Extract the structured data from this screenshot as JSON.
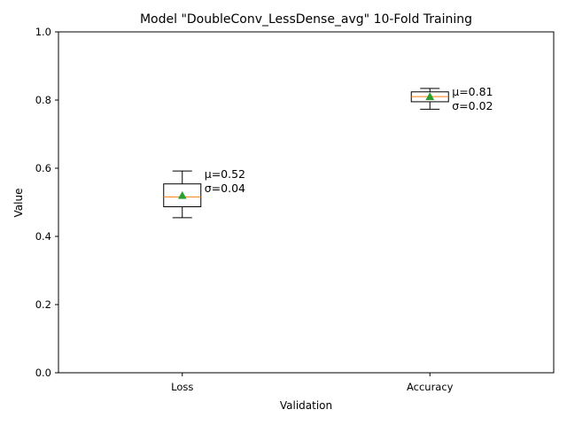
{
  "chart_data": {
    "type": "box",
    "title": "Model \"DoubleConv_LessDense_avg\" 10-Fold Training",
    "xlabel": "Validation",
    "ylabel": "Value",
    "ylim": [
      0,
      1
    ],
    "yticks": [
      0.0,
      0.2,
      0.4,
      0.6,
      0.8,
      1.0
    ],
    "ytick_labels": [
      "0.0",
      "0.2",
      "0.4",
      "0.6",
      "0.8",
      "1.0"
    ],
    "categories": [
      "Loss",
      "Accuracy"
    ],
    "boxes": [
      {
        "category": "Loss",
        "whisker_low": 0.455,
        "q1": 0.487,
        "median": 0.516,
        "q3": 0.554,
        "whisker_high": 0.592,
        "mean": 0.52,
        "annotation": [
          "μ=0.52",
          "σ=0.04"
        ]
      },
      {
        "category": "Accuracy",
        "whisker_low": 0.773,
        "q1": 0.795,
        "median": 0.81,
        "q3": 0.824,
        "whisker_high": 0.834,
        "mean": 0.81,
        "annotation": [
          "μ=0.81",
          "σ=0.02"
        ]
      }
    ],
    "colors": {
      "box": "#000000",
      "median": "#ff7f0e",
      "mean": "#2ca02c"
    },
    "grid": false
  }
}
